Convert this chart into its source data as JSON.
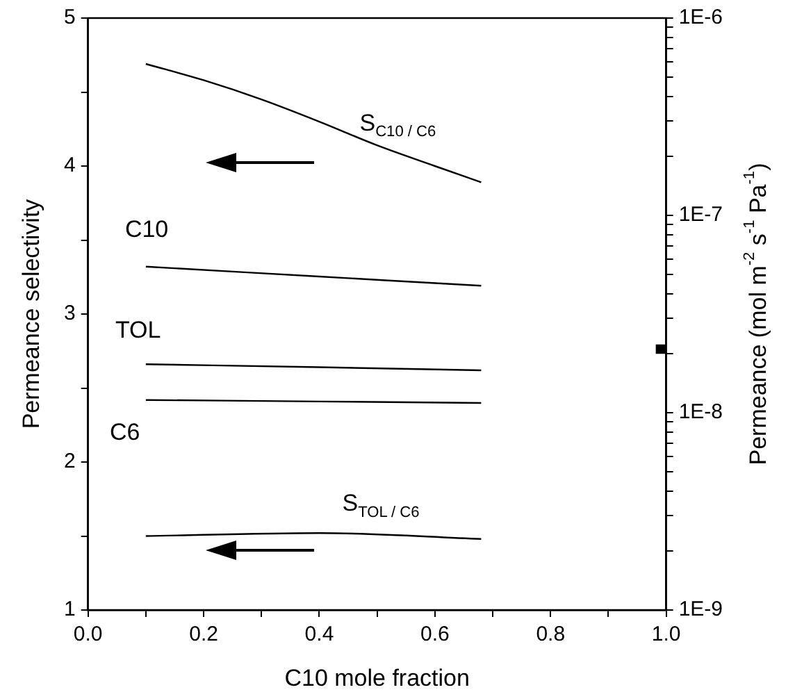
{
  "chart_data": {
    "type": "line",
    "xlabel": "C10 mole fraction",
    "ylabel": "Permeance selectivity",
    "y2label": "Permeance (mol m$^{-2}$ s$^{-1}$ Pa$^{-1}$)",
    "xlim": [
      0,
      1
    ],
    "xticks": [
      {
        "value": 0,
        "label": "0.0"
      },
      {
        "value": 0.1,
        "label": null
      },
      {
        "value": 0.2,
        "label": "0.2"
      },
      {
        "value": 0.3,
        "label": null
      },
      {
        "value": 0.4,
        "label": "0.4"
      },
      {
        "value": 0.5,
        "label": null
      },
      {
        "value": 0.6,
        "label": "0.6"
      },
      {
        "value": 0.7,
        "label": null
      },
      {
        "value": 0.8,
        "label": "0.8"
      },
      {
        "value": 0.9,
        "label": null
      },
      {
        "value": 1,
        "label": "1.0"
      }
    ],
    "ylim": [
      1,
      5
    ],
    "yticks": [
      1,
      {
        "value": 1.5,
        "label": null
      },
      2,
      {
        "value": 2.5,
        "label": null
      },
      3,
      {
        "value": 3.5,
        "label": null
      },
      4,
      {
        "value": 4.5,
        "label": null
      },
      5
    ],
    "log": "y2",
    "y2lim": [
      1e-09,
      1e-06
    ],
    "y2ticks": [
      {
        "value": 1e-09,
        "label": "1E-9"
      },
      {
        "value": 2e-09,
        "label": null
      },
      {
        "value": 3e-09,
        "label": null
      },
      {
        "value": 4e-09,
        "label": null
      },
      {
        "value": 5e-09,
        "label": null
      },
      {
        "value": 6e-09,
        "label": null
      },
      {
        "value": 7e-09,
        "label": null
      },
      {
        "value": 8e-09,
        "label": null
      },
      {
        "value": 9e-09,
        "label": null
      },
      {
        "value": 1e-08,
        "label": "1E-8"
      },
      {
        "value": 2e-08,
        "label": null
      },
      {
        "value": 3e-08,
        "label": null
      },
      {
        "value": 4e-08,
        "label": null
      },
      {
        "value": 5e-08,
        "label": null
      },
      {
        "value": 6e-08,
        "label": null
      },
      {
        "value": 7e-08,
        "label": null
      },
      {
        "value": 8e-08,
        "label": null
      },
      {
        "value": 9e-08,
        "label": null
      },
      {
        "value": 1e-07,
        "label": "1E-7"
      },
      {
        "value": 2e-07,
        "label": null
      },
      {
        "value": 3e-07,
        "label": null
      },
      {
        "value": 4e-07,
        "label": null
      },
      {
        "value": 5e-07,
        "label": null
      },
      {
        "value": 6e-07,
        "label": null
      },
      {
        "value": 7e-07,
        "label": null
      },
      {
        "value": 8e-07,
        "label": null
      },
      {
        "value": 9e-07,
        "label": null
      },
      {
        "value": 1e-06,
        "label": "1E-6"
      }
    ],
    "grid": false,
    "legend": false,
    "marker": "none",
    "line_style": "solid",
    "series": [
      {
        "name": "S$_{C10 / C6}$",
        "color": "#000000",
        "x": [
          0.1,
          0.2,
          0.3,
          0.4,
          0.5,
          0.6,
          0.68
        ],
        "values": [
          4.69,
          4.58,
          4.45,
          4.3,
          4.14,
          4.0,
          3.89
        ]
      },
      {
        "name": "C10",
        "color": "#000000",
        "axis": "y2",
        "x": [
          0.1,
          0.4,
          0.68
        ],
        "values": [
          5.5e-08,
          4.9e-08,
          4.4e-08
        ]
      },
      {
        "name": "TOL",
        "color": "#000000",
        "axis": "y2",
        "x": [
          0.1,
          0.4,
          0.68
        ],
        "values": [
          1.76e-08,
          1.7e-08,
          1.64e-08
        ]
      },
      {
        "name": "C6",
        "color": "#000000",
        "axis": "y2",
        "x": [
          0.1,
          0.4,
          0.68
        ],
        "values": [
          1.16e-08,
          1.14e-08,
          1.12e-08
        ]
      },
      {
        "name": "S$_{TOL / C6}$",
        "color": "#000000",
        "x": [
          0.1,
          0.4,
          0.68
        ],
        "values": [
          1.5,
          1.52,
          1.48
        ]
      },
      {
        "type": "scatter",
        "marker": "square",
        "color": "#000000",
        "axis": "y2",
        "x": [
          0.99
        ],
        "values": [
          2.1e-08
        ]
      }
    ]
  }
}
